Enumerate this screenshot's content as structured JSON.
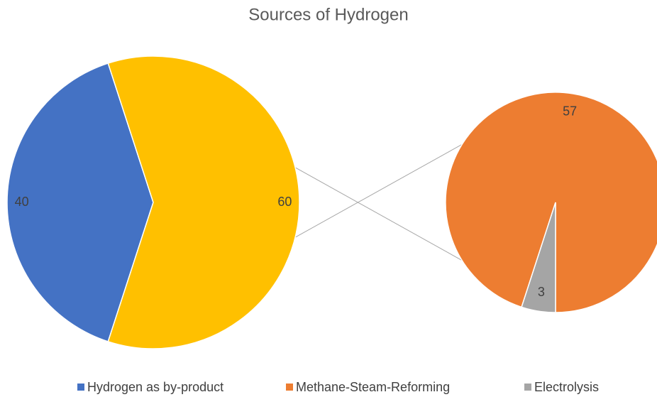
{
  "chart_data": {
    "type": "pie",
    "title": "Sources of Hydrogen",
    "main": {
      "categories": [
        "Hydrogen as by-product",
        null
      ],
      "values": [
        40,
        60
      ],
      "colors": [
        "#4472c4",
        "#ffc000"
      ]
    },
    "secondary": {
      "categories": [
        "Methane-Steam-Reforming",
        "Electrolysis"
      ],
      "values": [
        57,
        3
      ],
      "colors": [
        "#ed7d31",
        "#a5a5a5"
      ]
    }
  }
}
